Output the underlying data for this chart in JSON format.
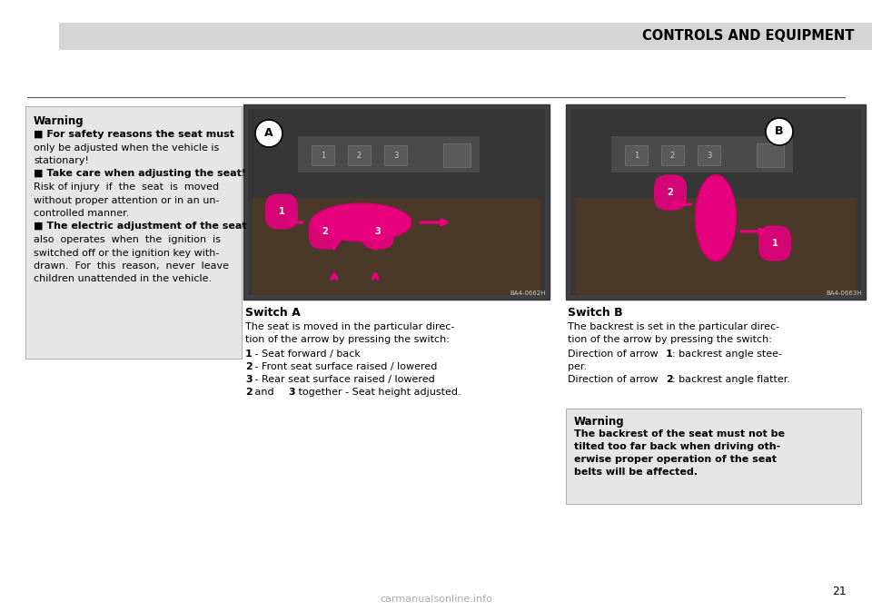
{
  "page_bg": "#ffffff",
  "header_bg": "#d5d5d5",
  "header_text": "CONTROLS AND EQUIPMENT",
  "header_text_color": "#000000",
  "header_font_size": 10.5,
  "page_number": "21",
  "page_number_color": "#000000",
  "separator_color": "#555555",
  "warning_box_bg": "#e6e6e6",
  "warning_box_border": "#aaaaaa",
  "left_warning_title": "Warning",
  "left_warning_lines": [
    [
      "■",
      " For safety reasons the seat must"
    ],
    [
      "",
      "only be adjusted when the vehicle is"
    ],
    [
      "",
      "stationary!"
    ],
    [
      "■",
      " Take care when adjusting the seat!"
    ],
    [
      "",
      "Risk of injury  if  the  seat  is  moved"
    ],
    [
      "",
      "without proper attention or in an un-"
    ],
    [
      "",
      "controlled manner."
    ],
    [
      "■",
      " The electric adjustment of the seat"
    ],
    [
      "",
      "also  operates  when  the  ignition  is"
    ],
    [
      "",
      "switched off or the ignition key with-"
    ],
    [
      "",
      "drawn.  For  this  reason,  never  leave"
    ],
    [
      "",
      "children unattended in the vehicle."
    ]
  ],
  "image_a_label": "BA4-0662H",
  "image_b_label": "BA4-0663H",
  "switch_a_title": "Switch A",
  "switch_a_desc1": "The seat is moved in the particular direc-",
  "switch_a_desc2": "tion of the arrow by pressing the switch:",
  "switch_a_items": [
    {
      "bold": "1",
      "rest": " - Seat forward / back"
    },
    {
      "bold": "2",
      "rest": " - Front seat surface raised / lowered"
    },
    {
      "bold": "3",
      "rest": " - Rear seat surface raised / lowered"
    },
    {
      "bold": "2",
      "rest": " and ",
      "bold2": "3",
      "rest2": " together - Seat height adjusted."
    }
  ],
  "switch_b_title": "Switch B",
  "switch_b_desc1": "The backrest is set in the particular direc-",
  "switch_b_desc2": "tion of the arrow by pressing the switch:",
  "switch_b_items": [
    {
      "bold": "",
      "rest": "Direction of arrow ",
      "bold2": "1",
      "rest2": ": backrest angle stee-"
    },
    {
      "bold": "",
      "rest": "per.",
      "bold2": "",
      "rest2": ""
    },
    {
      "bold": "",
      "rest": "Direction of arrow ",
      "bold2": "2",
      "rest2": ": backrest angle flatter."
    }
  ],
  "right_warning_title": "Warning",
  "right_warning_lines": [
    "The backrest of the seat must not be",
    "tilted too far back when driving oth-",
    "erwise proper operation of the seat",
    "belts will be affected."
  ],
  "watermark": "carmanualsonline.info"
}
